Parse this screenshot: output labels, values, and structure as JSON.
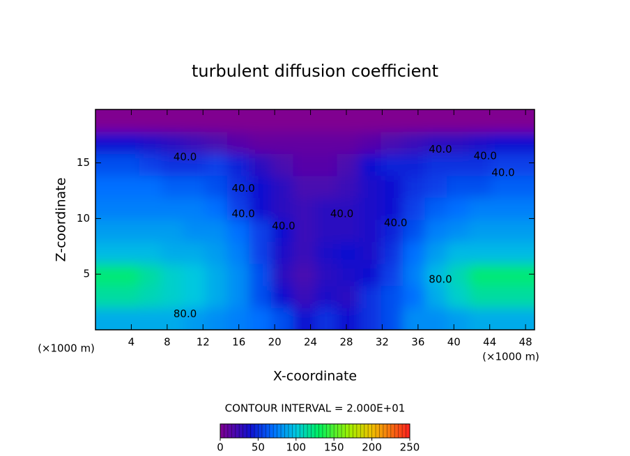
{
  "chart_data": {
    "type": "contour",
    "title": "turbulent diffusion coefficient",
    "xlabel": "X-coordinate",
    "ylabel": "Z-coordinate",
    "x_unit": "(×1000 m)",
    "y_unit": "(×1000 m)",
    "xlim": [
      0,
      49
    ],
    "ylim": [
      0,
      19.8
    ],
    "xticks": [
      4,
      8,
      12,
      16,
      20,
      24,
      28,
      32,
      36,
      40,
      44,
      48
    ],
    "yticks": [
      5,
      10,
      15
    ],
    "z": [
      [
        90,
        90,
        90,
        90,
        85,
        80,
        75,
        70,
        60,
        40,
        50,
        40,
        50,
        60,
        80,
        80,
        85,
        90,
        90,
        90
      ],
      [
        115,
        115,
        110,
        105,
        100,
        90,
        80,
        60,
        40,
        25,
        35,
        30,
        50,
        60,
        70,
        90,
        105,
        115,
        115,
        115
      ],
      [
        125,
        125,
        115,
        105,
        100,
        90,
        80,
        60,
        30,
        20,
        30,
        35,
        40,
        55,
        75,
        95,
        110,
        125,
        125,
        125
      ],
      [
        95,
        95,
        95,
        90,
        90,
        85,
        75,
        55,
        35,
        25,
        35,
        40,
        35,
        50,
        70,
        85,
        95,
        95,
        95,
        95
      ],
      [
        85,
        85,
        85,
        85,
        80,
        80,
        70,
        55,
        40,
        25,
        30,
        30,
        35,
        45,
        60,
        75,
        80,
        85,
        85,
        85
      ],
      [
        75,
        75,
        75,
        75,
        75,
        70,
        55,
        40,
        30,
        25,
        30,
        30,
        35,
        40,
        55,
        65,
        70,
        75,
        75,
        75
      ],
      [
        70,
        70,
        70,
        65,
        65,
        60,
        50,
        40,
        30,
        20,
        20,
        25,
        35,
        40,
        50,
        55,
        60,
        60,
        65,
        65
      ],
      [
        60,
        60,
        55,
        50,
        50,
        55,
        45,
        30,
        20,
        15,
        15,
        20,
        40,
        45,
        45,
        50,
        50,
        50,
        55,
        55
      ],
      [
        40,
        40,
        35,
        30,
        25,
        20,
        15,
        10,
        10,
        10,
        10,
        10,
        15,
        20,
        25,
        30,
        30,
        35,
        40,
        40
      ],
      [
        0,
        0,
        0,
        0,
        0,
        0,
        0,
        0,
        0,
        0,
        0,
        0,
        0,
        0,
        0,
        0,
        0,
        0,
        0,
        0
      ]
    ],
    "contour_labels": [
      "40.0",
      "40.0",
      "40.0",
      "40.0",
      "40.0",
      "40.0",
      "40.0",
      "40.0",
      "40.0",
      "80.0",
      "80.0"
    ],
    "contour_interval_text": "CONTOUR INTERVAL = 2.000E+01",
    "colorbar": {
      "lim": [
        0,
        250
      ],
      "ticks": [
        0,
        50,
        100,
        150,
        200,
        250
      ],
      "stops": [
        {
          "value": 0,
          "color": "#800090"
        },
        {
          "value": 40,
          "color": "#1010d0"
        },
        {
          "value": 70,
          "color": "#0070ff"
        },
        {
          "value": 100,
          "color": "#00c8e0"
        },
        {
          "value": 130,
          "color": "#00f060"
        },
        {
          "value": 170,
          "color": "#a0f000"
        },
        {
          "value": 200,
          "color": "#f0c000"
        },
        {
          "value": 250,
          "color": "#ff2020"
        }
      ]
    }
  }
}
